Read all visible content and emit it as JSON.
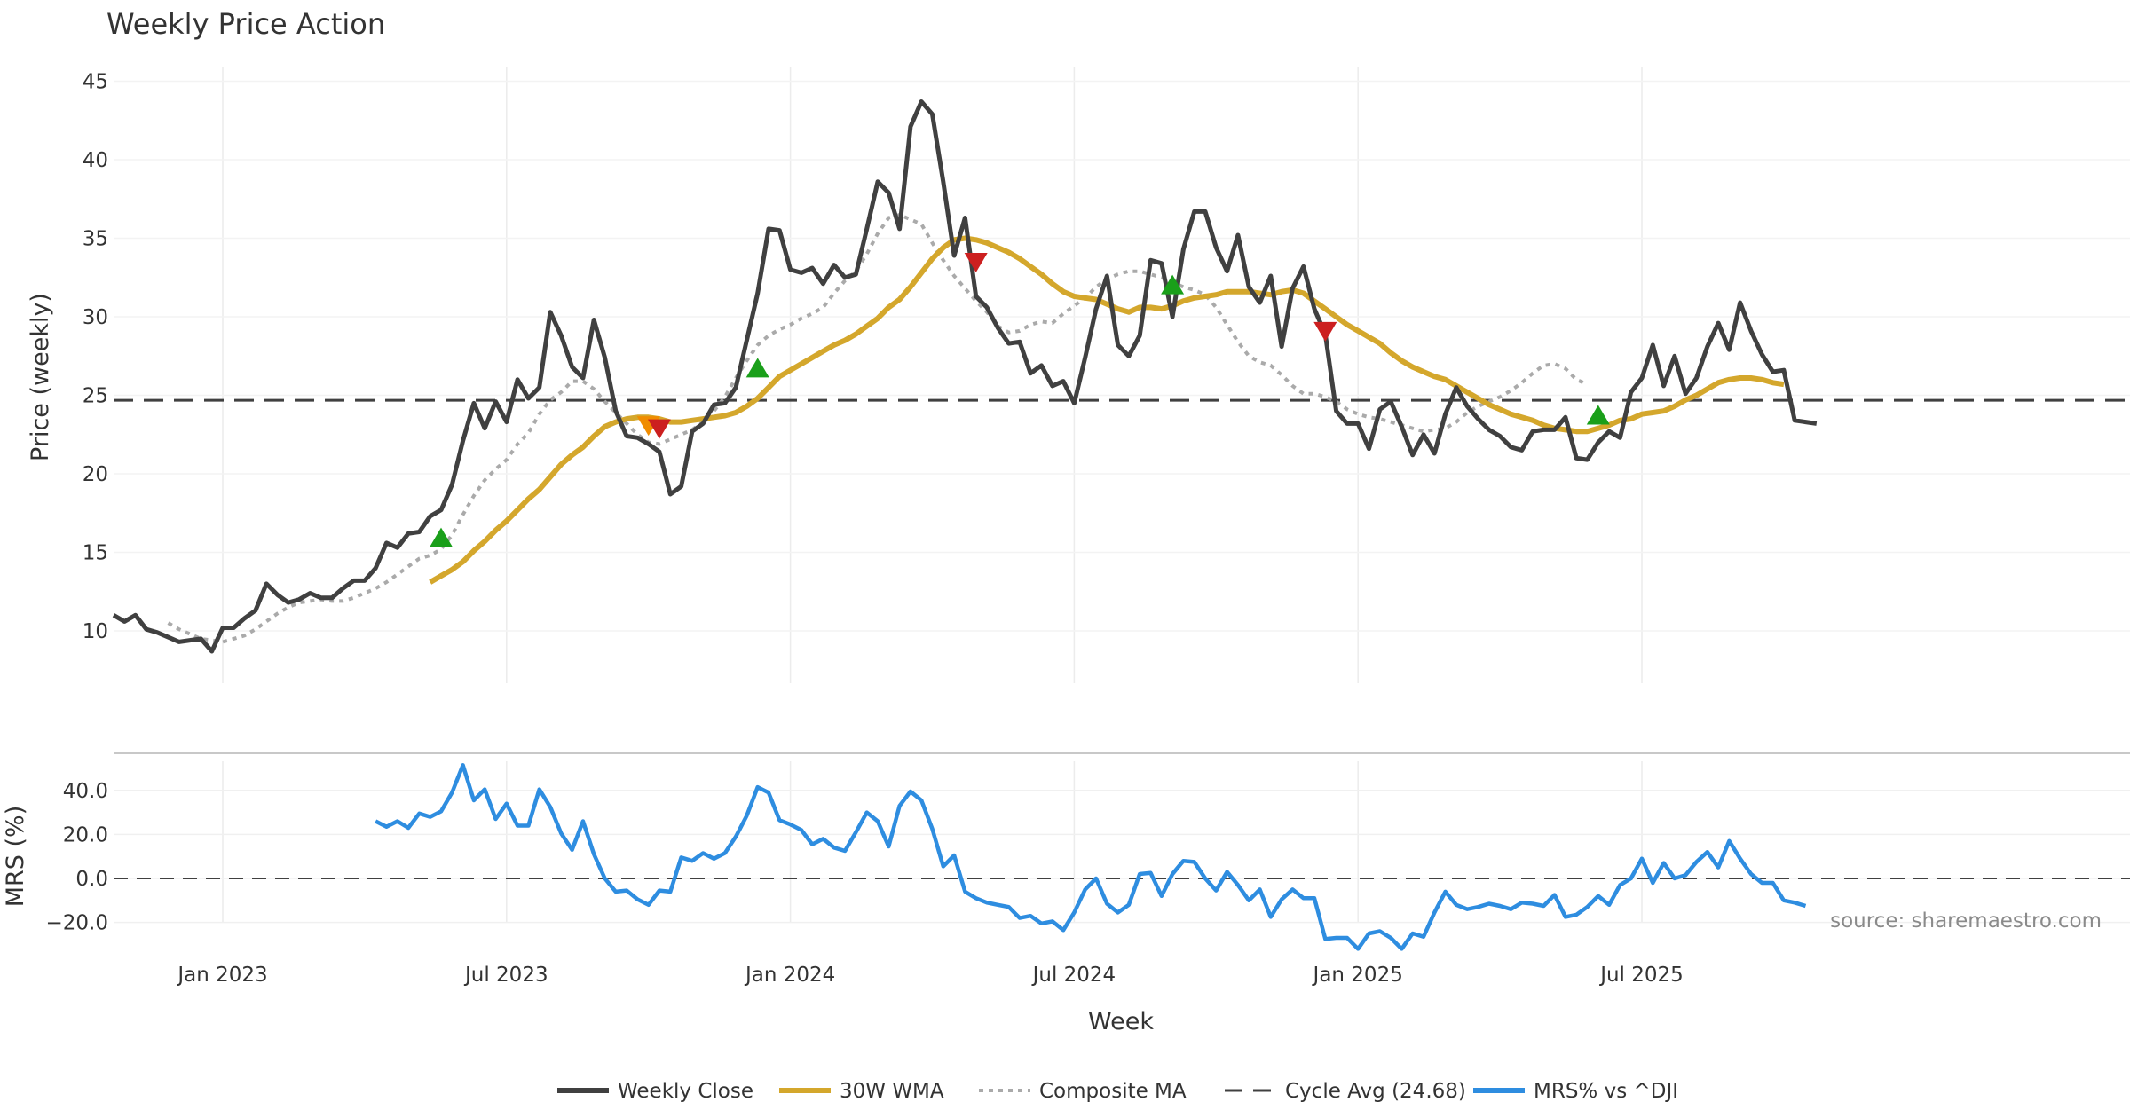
{
  "chart_data": {
    "type": "line",
    "title": "Weekly Price Action",
    "xlabel": "Week",
    "source": "source: sharemaestro.com",
    "x_ticks": [
      "Jan 2023",
      "Jul 2023",
      "Jan 2024",
      "Jul 2024",
      "Jan 2025",
      "Jul 2025"
    ],
    "x_tick_weeks": [
      5,
      31,
      57,
      83,
      109,
      135
    ],
    "week_range": [
      -5,
      150
    ],
    "start_week_of_close": -5,
    "price_panel": {
      "ylabel": "Price (weekly)",
      "ylim": [
        6.5,
        46.5
      ],
      "yticks": [
        10,
        15,
        20,
        25,
        30,
        35,
        40,
        45
      ],
      "cycle_avg": 24.68,
      "series": [
        {
          "name": "Weekly Close",
          "color": "#404040",
          "start_week": -5,
          "values": [
            11.0,
            10.6,
            11.0,
            10.1,
            9.9,
            9.6,
            9.3,
            9.4,
            9.5,
            8.7,
            10.2,
            10.2,
            10.8,
            11.3,
            13.0,
            12.3,
            11.8,
            12.0,
            12.4,
            12.1,
            12.1,
            12.7,
            13.2,
            13.2,
            14.0,
            15.6,
            15.3,
            16.2,
            16.3,
            17.3,
            17.7,
            19.3,
            22.1,
            24.5,
            22.9,
            24.6,
            23.3,
            26.0,
            24.8,
            25.5,
            30.3,
            28.8,
            26.8,
            26.1,
            29.8,
            27.4,
            24.0,
            22.4,
            22.3,
            21.9,
            21.4,
            18.7,
            19.2,
            22.7,
            23.2,
            24.4,
            24.5,
            25.5,
            28.5,
            31.5,
            35.6,
            35.5,
            33.0,
            32.8,
            33.1,
            32.1,
            33.3,
            32.5,
            32.7,
            35.6,
            38.6,
            37.9,
            35.6,
            42.1,
            43.7,
            42.9,
            38.6,
            33.9,
            36.3,
            31.3,
            30.6,
            29.3,
            28.3,
            28.4,
            26.4,
            26.9,
            25.6,
            25.9,
            24.5,
            27.4,
            30.5,
            32.6,
            28.2,
            27.5,
            28.8,
            33.6,
            33.4,
            30.0,
            34.3,
            36.7,
            36.7,
            34.4,
            32.9,
            35.2,
            31.9,
            30.9,
            32.6,
            28.1,
            31.8,
            33.2,
            30.5,
            28.9,
            24.0,
            23.2,
            23.2,
            21.6,
            24.1,
            24.6,
            23.0,
            21.2,
            22.5,
            21.3,
            23.8,
            25.5,
            24.3,
            23.5,
            22.8,
            22.4,
            21.7,
            21.5,
            22.7,
            22.8,
            22.8,
            23.6,
            21.0,
            20.9,
            22.0,
            22.7,
            22.3,
            25.2,
            26.1,
            28.2,
            25.6,
            27.5,
            25.1,
            26.1,
            28.1,
            29.6,
            27.9,
            30.9,
            29.1,
            27.6,
            26.5,
            26.6,
            23.4,
            23.3,
            23.2
          ]
        },
        {
          "name": "30W WMA",
          "color": "#d4a72c",
          "start_week": 24,
          "values": [
            13.1,
            13.5,
            13.9,
            14.4,
            15.1,
            15.7,
            16.4,
            17.0,
            17.7,
            18.4,
            19.0,
            19.8,
            20.6,
            21.2,
            21.7,
            22.4,
            23.0,
            23.3,
            23.5,
            23.6,
            23.6,
            23.5,
            23.3,
            23.3,
            23.4,
            23.5,
            23.6,
            23.7,
            23.9,
            24.3,
            24.8,
            25.5,
            26.2,
            26.6,
            27.0,
            27.4,
            27.8,
            28.2,
            28.5,
            28.9,
            29.4,
            29.9,
            30.6,
            31.1,
            31.9,
            32.8,
            33.7,
            34.4,
            34.9,
            35.0,
            34.9,
            34.7,
            34.4,
            34.1,
            33.7,
            33.2,
            32.7,
            32.1,
            31.6,
            31.3,
            31.2,
            31.1,
            30.8,
            30.5,
            30.3,
            30.6,
            30.6,
            30.5,
            30.7,
            31.0,
            31.2,
            31.3,
            31.4,
            31.6,
            31.6,
            31.6,
            31.5,
            31.4,
            31.6,
            31.7,
            31.5,
            31.0,
            30.5,
            30.0,
            29.5,
            29.1,
            28.7,
            28.3,
            27.7,
            27.2,
            26.8,
            26.5,
            26.2,
            26.0,
            25.6,
            25.2,
            24.8,
            24.4,
            24.1,
            23.8,
            23.6,
            23.4,
            23.1,
            22.9,
            22.8,
            22.7,
            22.7,
            22.9,
            23.1,
            23.4,
            23.5,
            23.8,
            23.9,
            24.0,
            24.3,
            24.7,
            25.0,
            25.4,
            25.8,
            26.0,
            26.1,
            26.1,
            26.0,
            25.8,
            25.7
          ]
        },
        {
          "name": "Composite MA",
          "color": "#aaaaaa",
          "start_week": 0,
          "values": [
            10.5,
            10.1,
            9.8,
            9.5,
            9.4,
            9.3,
            9.5,
            9.7,
            10.1,
            10.6,
            11.1,
            11.5,
            11.8,
            11.9,
            12.0,
            11.9,
            11.9,
            12.1,
            12.4,
            12.7,
            13.1,
            13.6,
            14.1,
            14.6,
            14.8,
            15.2,
            16.1,
            17.4,
            18.6,
            19.6,
            20.3,
            20.9,
            21.9,
            22.6,
            23.8,
            24.7,
            25.2,
            25.9,
            25.9,
            25.4,
            24.6,
            23.9,
            23.2,
            22.5,
            22.0,
            21.9,
            22.2,
            22.5,
            22.8,
            23.3,
            24.0,
            24.9,
            26.1,
            27.2,
            28.2,
            28.8,
            29.2,
            29.5,
            29.9,
            30.2,
            30.6,
            31.5,
            32.3,
            32.9,
            34.0,
            35.3,
            36.3,
            36.5,
            36.2,
            35.9,
            34.7,
            33.6,
            32.6,
            31.8,
            31.0,
            30.3,
            29.4,
            29.0,
            29.1,
            29.5,
            29.7,
            29.6,
            30.2,
            30.7,
            31.2,
            31.9,
            32.4,
            32.7,
            32.9,
            32.9,
            32.7,
            32.5,
            32.2,
            31.9,
            31.7,
            31.4,
            30.6,
            29.5,
            28.4,
            27.5,
            27.1,
            26.9,
            26.3,
            25.6,
            25.1,
            25.1,
            24.9,
            24.6,
            24.1,
            23.8,
            23.6,
            23.5,
            23.3,
            23.1,
            22.9,
            22.7,
            22.8,
            22.9,
            23.3,
            23.9,
            24.3,
            24.6,
            24.9,
            25.3,
            25.8,
            26.4,
            26.9,
            27.0,
            26.7,
            26.0,
            25.7
          ]
        }
      ],
      "signals": [
        {
          "type": "buy",
          "week": 25,
          "value": 15.9
        },
        {
          "type": "caution",
          "week": 44,
          "value": 23.1
        },
        {
          "type": "sell",
          "week": 45,
          "value": 22.9
        },
        {
          "type": "buy",
          "week": 54,
          "value": 26.7
        },
        {
          "type": "sell",
          "week": 74,
          "value": 33.5
        },
        {
          "type": "buy",
          "week": 92,
          "value": 32.0
        },
        {
          "type": "sell",
          "week": 106,
          "value": 29.1
        },
        {
          "type": "buy",
          "week": 131,
          "value": 23.7
        }
      ],
      "signal_colors": {
        "buy": "#1a9f1a",
        "sell": "#cc1f1f",
        "caution": "#f08c00"
      }
    },
    "mrs_panel": {
      "ylabel": "MRS (%)",
      "ylim": [
        -33,
        55
      ],
      "yticks": [
        40.0,
        20.0,
        0.0,
        -20.0
      ],
      "ytick_labels": [
        "40.0",
        "20.0",
        "0.0",
        "−20.0"
      ],
      "series": [
        {
          "name": "MRS% vs ^DJI",
          "color": "#2e8de0",
          "start_week": 19,
          "values": [
            26,
            23.5,
            26,
            23,
            29.5,
            28,
            30.5,
            39,
            51.5,
            35.5,
            40.5,
            27,
            34,
            24,
            24,
            40.5,
            32.5,
            20.5,
            13,
            26,
            11,
            0,
            -6,
            -5.5,
            -9.5,
            -12,
            -5.5,
            -6,
            9.5,
            8,
            11.5,
            9,
            11.5,
            19,
            28.5,
            41.5,
            39,
            26.5,
            24.5,
            22,
            15.5,
            18,
            14,
            12.5,
            21,
            30,
            26,
            14.5,
            33,
            39.5,
            35.5,
            22.5,
            5.5,
            10.5,
            -6,
            -9,
            -11,
            -12,
            -13,
            -18,
            -17,
            -20.5,
            -19.5,
            -23.5,
            -15.5,
            -5,
            0,
            -11.5,
            -15.5,
            -12,
            2,
            2.5,
            -8,
            2,
            8,
            7.5,
            0,
            -5.5,
            3,
            -3,
            -10,
            -5,
            -17.5,
            -9.5,
            -5,
            -9,
            -9,
            -27.5,
            -27,
            -27,
            -32,
            -25,
            -24,
            -27,
            -32,
            -25,
            -26.5,
            -15.5,
            -6,
            -12,
            -14,
            -13,
            -11.5,
            -12.5,
            -14,
            -11,
            -11.5,
            -12.5,
            -7.5,
            -17.5,
            -16.5,
            -13,
            -8,
            -12,
            -3,
            0,
            9,
            -2,
            7,
            0,
            1.5,
            7.5,
            12,
            5,
            17,
            9,
            2,
            -2,
            -2,
            -10,
            -11,
            -12.5
          ]
        }
      ]
    },
    "legend": [
      {
        "label": "Weekly Close",
        "style": "solid",
        "color": "#404040"
      },
      {
        "label": "30W WMA",
        "style": "solid",
        "color": "#d4a72c"
      },
      {
        "label": "Composite MA",
        "style": "dotted",
        "color": "#aaaaaa"
      },
      {
        "label": "Cycle Avg (24.68)",
        "style": "dashed",
        "color": "#404040"
      },
      {
        "label": "MRS% vs ^DJI",
        "style": "solid",
        "color": "#2e8de0"
      }
    ]
  }
}
